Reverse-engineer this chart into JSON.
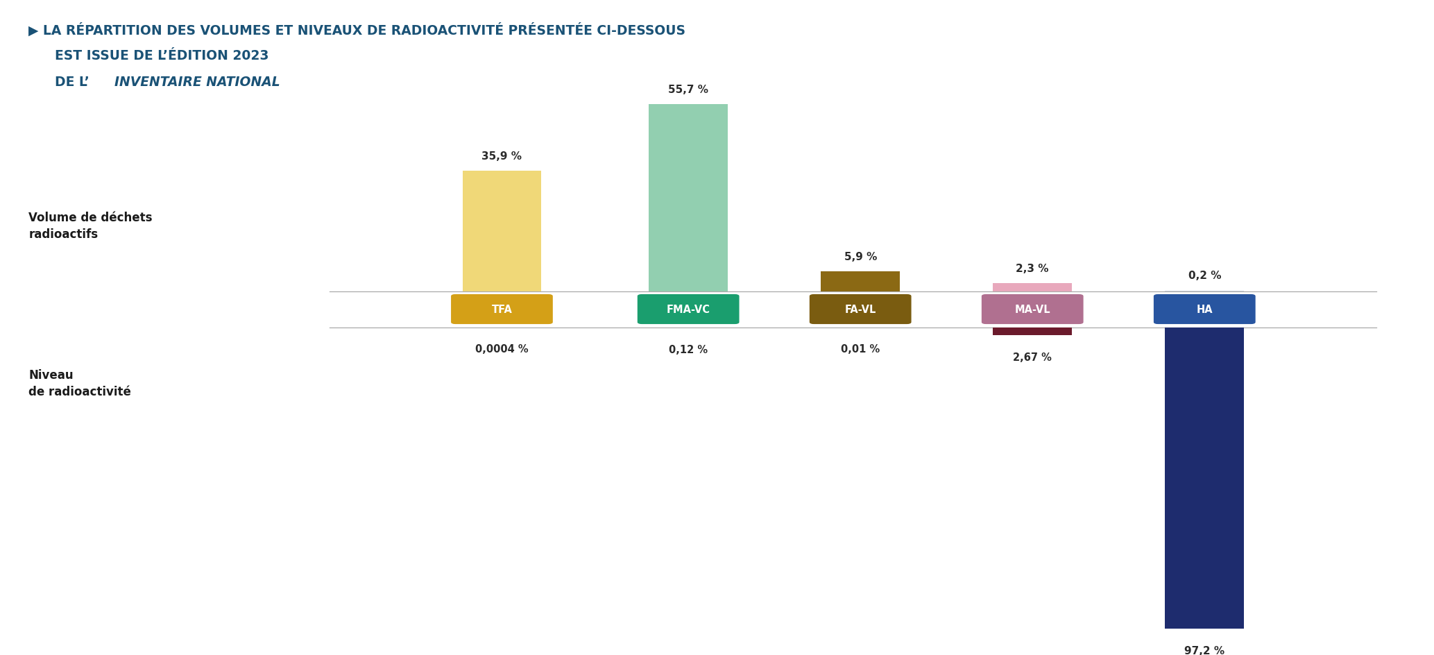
{
  "title_line1": "▶ LA RÉPARTITION DES VOLUMES ET NIVEAUX DE RADIOACTIVITÉ PRÉSENTÉE CI-DESSOUS",
  "title_line2": "    EST ISSUE DE L’ÉDITION 2023",
  "title_line3_prefix": "    DE L’",
  "title_line3_italic": "INVENTAIRE NATIONAL",
  "title_color": "#1a5276",
  "background_color": "#ffffff",
  "categories": [
    "TFA",
    "FMA-VC",
    "FA-VL",
    "MA-VL",
    "HA"
  ],
  "label_colors": [
    "#d4a017",
    "#1a9e6e",
    "#7a5c10",
    "#b07090",
    "#2855a0"
  ],
  "label_text_colors": [
    "#ffffff",
    "#ffffff",
    "#ffffff",
    "#ffffff",
    "#ffffff"
  ],
  "volume_values": [
    35.9,
    55.7,
    5.9,
    2.3,
    0.2
  ],
  "volume_colors": [
    "#f0d878",
    "#92cfb0",
    "#8b6914",
    "#e8a8bc",
    "#c8d0dc"
  ],
  "volume_labels": [
    "35,9 %",
    "55,7 %",
    "5,9 %",
    "2,3 %",
    "0,2 %"
  ],
  "radioactivity_values": [
    0.0004,
    0.12,
    0.01,
    2.67,
    97.2
  ],
  "radioactivity_colors": [
    "#c8a820",
    "#1a5c34",
    "#5a400c",
    "#6b1a2c",
    "#1e2c6e"
  ],
  "radioactivity_labels": [
    "0,0004 %",
    "0,12 %",
    "0,01 %",
    "2,67 %",
    "97,2 %"
  ],
  "ylabel_volume": "Volume de déchets\nradioactifs",
  "ylabel_radioactivity": "Niveau\nde radioactivité",
  "separator_color": "#aaaaaa",
  "x_positions": [
    0.35,
    0.48,
    0.6,
    0.72,
    0.84
  ]
}
